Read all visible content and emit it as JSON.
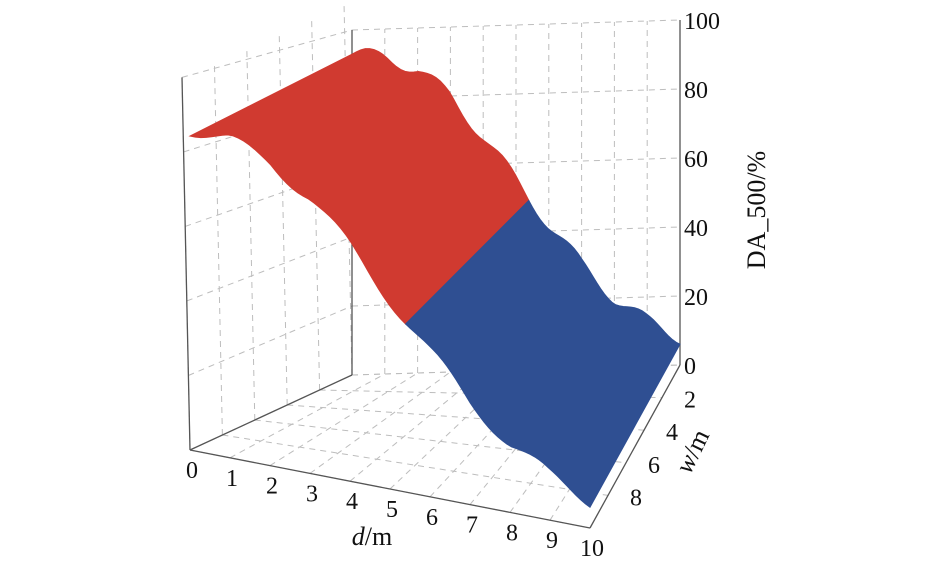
{
  "chart_data": {
    "type": "surface",
    "x": {
      "label_var": "d",
      "label_unit": "/m",
      "ticks": [
        0,
        1,
        2,
        3,
        4,
        5,
        6,
        7,
        8,
        9,
        10
      ],
      "range": [
        0,
        10
      ]
    },
    "y": {
      "label_var": "w",
      "label_unit": "/m",
      "ticks": [
        2,
        4,
        6,
        8
      ],
      "range": [
        0,
        10
      ]
    },
    "z": {
      "label": "DA_500/%",
      "ticks": [
        0,
        20,
        40,
        60,
        80,
        100
      ],
      "range": [
        0,
        100
      ]
    },
    "surface_profile": {
      "d": [
        0,
        1,
        2,
        3,
        4,
        5,
        6,
        7,
        8,
        9,
        10
      ],
      "DA_500": [
        93,
        92,
        88,
        80,
        68,
        55,
        42,
        30,
        20,
        13,
        8
      ]
    },
    "color_bands": [
      {
        "range": [
          50,
          100
        ],
        "color": "#d03a30"
      },
      {
        "range": [
          0,
          50
        ],
        "color": "#2f4f92"
      }
    ],
    "grid": true
  }
}
